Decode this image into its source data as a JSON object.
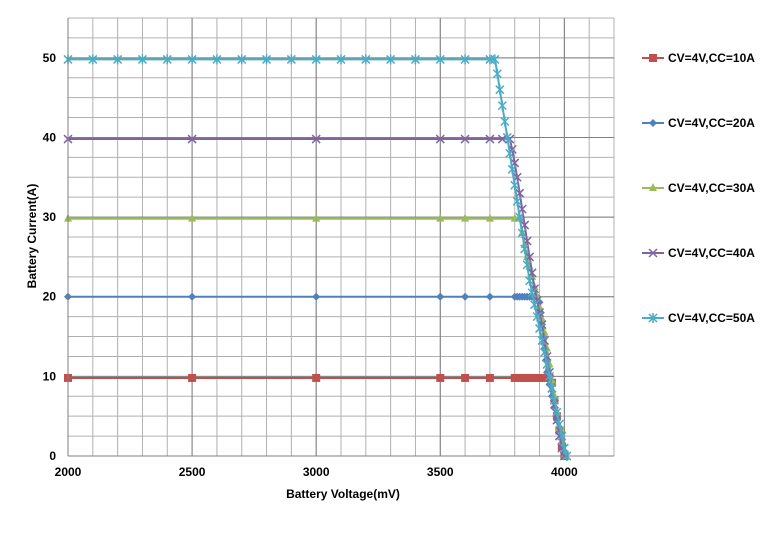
{
  "chart_data": {
    "type": "line",
    "title": "",
    "xlabel": "Battery Voltage(mV)",
    "ylabel": "Battery Current(A)",
    "xlim": [
      2000,
      4200
    ],
    "ylim": [
      0,
      55
    ],
    "xticks": [
      2000,
      2500,
      3000,
      3500,
      4000
    ],
    "yticks": [
      0,
      10,
      20,
      30,
      40,
      50
    ],
    "grid": true,
    "legend_position": "right",
    "series": [
      {
        "name": "CV=4V,CC=10A",
        "color": "#C0504D",
        "marker": "square",
        "points": [
          [
            2000,
            9.8
          ],
          [
            2500,
            9.8
          ],
          [
            3000,
            9.8
          ],
          [
            3500,
            9.8
          ],
          [
            3600,
            9.8
          ],
          [
            3700,
            9.8
          ],
          [
            3800,
            9.8
          ],
          [
            3820,
            9.8
          ],
          [
            3840,
            9.8
          ],
          [
            3860,
            9.8
          ],
          [
            3880,
            9.8
          ],
          [
            3900,
            9.8
          ],
          [
            3920,
            9.8
          ],
          [
            3940,
            9.8
          ],
          [
            3950,
            9.2
          ],
          [
            3960,
            7
          ],
          [
            3970,
            5
          ],
          [
            3980,
            3.2
          ],
          [
            3990,
            1.2
          ],
          [
            4000,
            0
          ]
        ]
      },
      {
        "name": "CV=4V,CC=20A",
        "color": "#4F81BD",
        "marker": "diamond",
        "points": [
          [
            2000,
            20
          ],
          [
            2500,
            20
          ],
          [
            3000,
            20
          ],
          [
            3500,
            20
          ],
          [
            3600,
            20
          ],
          [
            3700,
            20
          ],
          [
            3800,
            20
          ],
          [
            3810,
            20
          ],
          [
            3820,
            20
          ],
          [
            3830,
            20
          ],
          [
            3840,
            20
          ],
          [
            3850,
            20
          ],
          [
            3860,
            20
          ],
          [
            3870,
            20
          ],
          [
            3880,
            20
          ],
          [
            3890,
            20
          ],
          [
            3900,
            19.3
          ],
          [
            3905,
            18
          ],
          [
            3910,
            16.5
          ],
          [
            3915,
            15
          ],
          [
            3920,
            13.5
          ],
          [
            3925,
            12
          ],
          [
            3930,
            10.5
          ],
          [
            3940,
            9
          ],
          [
            3950,
            7.5
          ],
          [
            3960,
            6
          ],
          [
            3970,
            4.5
          ],
          [
            3980,
            3
          ],
          [
            3990,
            1.5
          ],
          [
            4000,
            0
          ]
        ]
      },
      {
        "name": "CV=4V,CC=30A",
        "color": "#9BBB59",
        "marker": "triangle",
        "points": [
          [
            2000,
            29.8
          ],
          [
            2500,
            29.8
          ],
          [
            3000,
            29.8
          ],
          [
            3500,
            29.8
          ],
          [
            3600,
            29.8
          ],
          [
            3700,
            29.8
          ],
          [
            3800,
            29.8
          ],
          [
            3820,
            29.8
          ],
          [
            3830,
            28
          ],
          [
            3840,
            26.5
          ],
          [
            3850,
            25
          ],
          [
            3860,
            23.8
          ],
          [
            3870,
            22.5
          ],
          [
            3880,
            21.2
          ],
          [
            3890,
            20
          ],
          [
            3900,
            18.7
          ],
          [
            3910,
            17.2
          ],
          [
            3920,
            15.5
          ],
          [
            3930,
            13.5
          ],
          [
            3940,
            11.5
          ],
          [
            3950,
            9.5
          ],
          [
            3960,
            7.5
          ],
          [
            3970,
            5.5
          ],
          [
            3980,
            3.5
          ],
          [
            3990,
            1.8
          ],
          [
            4000,
            0
          ]
        ]
      },
      {
        "name": "CV=4V,CC=40A",
        "color": "#8064A2",
        "marker": "x",
        "points": [
          [
            2000,
            39.8
          ],
          [
            2500,
            39.8
          ],
          [
            3000,
            39.8
          ],
          [
            3500,
            39.8
          ],
          [
            3600,
            39.8
          ],
          [
            3700,
            39.8
          ],
          [
            3750,
            39.8
          ],
          [
            3780,
            39.8
          ],
          [
            3790,
            38.5
          ],
          [
            3800,
            36.8
          ],
          [
            3810,
            35
          ],
          [
            3820,
            33
          ],
          [
            3830,
            31
          ],
          [
            3840,
            29
          ],
          [
            3850,
            27
          ],
          [
            3860,
            25
          ],
          [
            3870,
            23
          ],
          [
            3880,
            21
          ],
          [
            3890,
            19.5
          ],
          [
            3900,
            18
          ],
          [
            3910,
            16.5
          ],
          [
            3920,
            14.5
          ],
          [
            3930,
            12.5
          ],
          [
            3940,
            10.5
          ],
          [
            3950,
            8.5
          ],
          [
            3960,
            6.5
          ],
          [
            3970,
            4.5
          ],
          [
            3980,
            2.5
          ],
          [
            3990,
            1
          ],
          [
            4000,
            0
          ]
        ]
      },
      {
        "name": "CV=4V,CC=50A",
        "color": "#4BACC6",
        "marker": "star",
        "points": [
          [
            2000,
            49.8
          ],
          [
            2100,
            49.8
          ],
          [
            2200,
            49.8
          ],
          [
            2300,
            49.8
          ],
          [
            2400,
            49.8
          ],
          [
            2500,
            49.8
          ],
          [
            2600,
            49.8
          ],
          [
            2700,
            49.8
          ],
          [
            2800,
            49.8
          ],
          [
            2900,
            49.8
          ],
          [
            3000,
            49.8
          ],
          [
            3100,
            49.8
          ],
          [
            3200,
            49.8
          ],
          [
            3300,
            49.8
          ],
          [
            3400,
            49.8
          ],
          [
            3500,
            49.8
          ],
          [
            3600,
            49.8
          ],
          [
            3700,
            49.8
          ],
          [
            3720,
            49.8
          ],
          [
            3730,
            48
          ],
          [
            3740,
            46
          ],
          [
            3750,
            44
          ],
          [
            3760,
            42
          ],
          [
            3770,
            40
          ],
          [
            3780,
            38
          ],
          [
            3790,
            36
          ],
          [
            3800,
            34
          ],
          [
            3810,
            32
          ],
          [
            3820,
            30
          ],
          [
            3830,
            28
          ],
          [
            3840,
            26
          ],
          [
            3850,
            24
          ],
          [
            3860,
            22
          ],
          [
            3870,
            20.5
          ],
          [
            3880,
            19
          ],
          [
            3890,
            17.5
          ],
          [
            3900,
            16
          ],
          [
            3910,
            14.5
          ],
          [
            3920,
            13
          ],
          [
            3930,
            11.5
          ],
          [
            3940,
            10
          ],
          [
            3950,
            8.5
          ],
          [
            3960,
            7
          ],
          [
            3970,
            5.5
          ],
          [
            3980,
            4
          ],
          [
            3990,
            2.5
          ],
          [
            4000,
            1
          ],
          [
            4010,
            0
          ]
        ]
      }
    ]
  }
}
